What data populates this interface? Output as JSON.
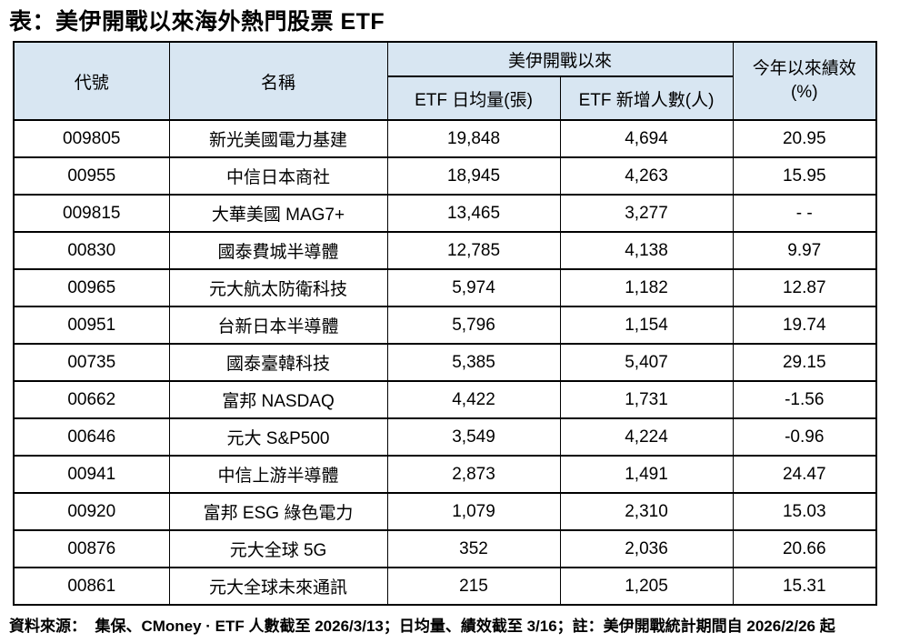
{
  "chart_data": {
    "type": "table",
    "title": "表：美伊開戰以來海外熱門股票 ETF",
    "header": {
      "code": "代號",
      "name": "名稱",
      "war_group": "美伊開戰以來",
      "avg_volume": "ETF 日均量(張)",
      "new_investors": "ETF 新增人數(人)",
      "ytd_line1": "今年以來績效",
      "ytd_line2": "(%)"
    },
    "rows": [
      {
        "code": "009805",
        "name": "新光美國電力基建",
        "avg_volume": "19,848",
        "new_investors": "4,694",
        "ytd": "20.95"
      },
      {
        "code": "00955",
        "name": "中信日本商社",
        "avg_volume": "18,945",
        "new_investors": "4,263",
        "ytd": "15.95"
      },
      {
        "code": "009815",
        "name": "大華美國 MAG7+",
        "avg_volume": "13,465",
        "new_investors": "3,277",
        "ytd": "- -"
      },
      {
        "code": "00830",
        "name": "國泰費城半導體",
        "avg_volume": "12,785",
        "new_investors": "4,138",
        "ytd": "9.97"
      },
      {
        "code": "00965",
        "name": "元大航太防衛科技",
        "avg_volume": "5,974",
        "new_investors": "1,182",
        "ytd": "12.87"
      },
      {
        "code": "00951",
        "name": "台新日本半導體",
        "avg_volume": "5,796",
        "new_investors": "1,154",
        "ytd": "19.74"
      },
      {
        "code": "00735",
        "name": "國泰臺韓科技",
        "avg_volume": "5,385",
        "new_investors": "5,407",
        "ytd": "29.15"
      },
      {
        "code": "00662",
        "name": "富邦 NASDAQ",
        "avg_volume": "4,422",
        "new_investors": "1,731",
        "ytd": "-1.56"
      },
      {
        "code": "00646",
        "name": "元大 S&P500",
        "avg_volume": "3,549",
        "new_investors": "4,224",
        "ytd": "-0.96"
      },
      {
        "code": "00941",
        "name": "中信上游半導體",
        "avg_volume": "2,873",
        "new_investors": "1,491",
        "ytd": "24.47"
      },
      {
        "code": "00920",
        "name": "富邦 ESG 綠色電力",
        "avg_volume": "1,079",
        "new_investors": "2,310",
        "ytd": "15.03"
      },
      {
        "code": "00876",
        "name": "元大全球 5G",
        "avg_volume": "352",
        "new_investors": "2,036",
        "ytd": "20.66"
      },
      {
        "code": "00861",
        "name": "元大全球未來通訊",
        "avg_volume": "215",
        "new_investors": "1,205",
        "ytd": "15.31"
      }
    ],
    "footer": "資料來源：  集保、CMoney · ETF 人數截至 2026/3/13；日均量、績效截至 3/16；註：美伊開戰統計期間自 2026/2/26 起"
  },
  "colors": {
    "header_bg": "#D8E6F2",
    "border": "#000000",
    "page_bg": "#FFFFFF",
    "text": "#000000"
  }
}
